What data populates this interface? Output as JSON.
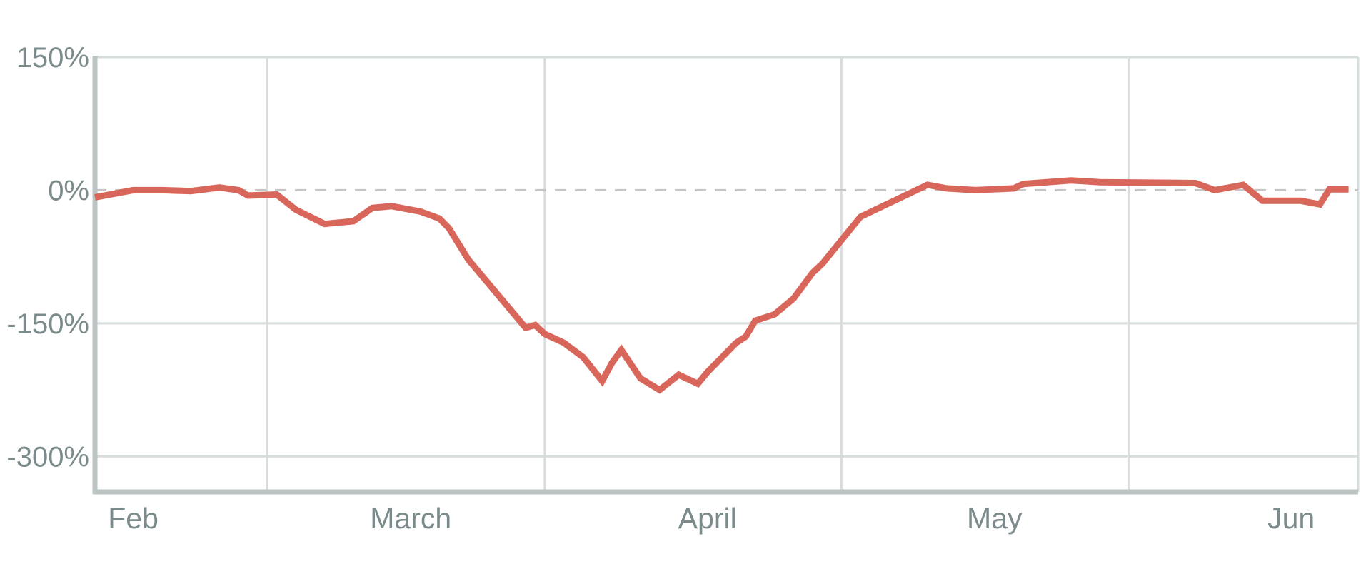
{
  "chart_data": {
    "type": "line",
    "title": "",
    "xlabel": "",
    "ylabel": "",
    "x_range": [
      "2020-01-28",
      "2020-06-08"
    ],
    "ylim": [
      -340,
      150
    ],
    "y_ticks": [
      150,
      0,
      -150,
      -300
    ],
    "y_tick_labels": [
      "150%",
      "0%",
      "-150%",
      "-300%"
    ],
    "x_ticks": [
      {
        "label": "Feb",
        "date": "2020-02-01"
      },
      {
        "label": "March",
        "date": "2020-03-01"
      },
      {
        "label": "April",
        "date": "2020-04-01"
      },
      {
        "label": "May",
        "date": "2020-05-01"
      },
      {
        "label": "Jun",
        "date": "2020-06-01"
      }
    ],
    "vertical_gridlines": [
      "2020-02-15",
      "2020-03-15",
      "2020-04-15",
      "2020-05-15"
    ],
    "baseline": 0,
    "grid": true,
    "colors": {
      "line": "#d9665b",
      "grid": "#d7dcdc",
      "axis": "#bcc3c3",
      "baseline": "#c5c5c5",
      "text": "#7b8a8b"
    },
    "series": [
      {
        "values": [
          {
            "x": "2020-01-28",
            "y": -8
          },
          {
            "x": "2020-01-30",
            "y": -4
          },
          {
            "x": "2020-02-01",
            "y": 0
          },
          {
            "x": "2020-02-04",
            "y": 0
          },
          {
            "x": "2020-02-07",
            "y": -1
          },
          {
            "x": "2020-02-10",
            "y": 3
          },
          {
            "x": "2020-02-12",
            "y": 0
          },
          {
            "x": "2020-02-13",
            "y": -6
          },
          {
            "x": "2020-02-16",
            "y": -5
          },
          {
            "x": "2020-02-18",
            "y": -22
          },
          {
            "x": "2020-02-21",
            "y": -38
          },
          {
            "x": "2020-02-24",
            "y": -35
          },
          {
            "x": "2020-02-26",
            "y": -20
          },
          {
            "x": "2020-02-28",
            "y": -18
          },
          {
            "x": "2020-03-02",
            "y": -24
          },
          {
            "x": "2020-03-04",
            "y": -32
          },
          {
            "x": "2020-03-05",
            "y": -43
          },
          {
            "x": "2020-03-07",
            "y": -78
          },
          {
            "x": "2020-03-13",
            "y": -155
          },
          {
            "x": "2020-03-14",
            "y": -152
          },
          {
            "x": "2020-03-15",
            "y": -162
          },
          {
            "x": "2020-03-17",
            "y": -172
          },
          {
            "x": "2020-03-19",
            "y": -188
          },
          {
            "x": "2020-03-21",
            "y": -215
          },
          {
            "x": "2020-03-22",
            "y": -195
          },
          {
            "x": "2020-03-23",
            "y": -180
          },
          {
            "x": "2020-03-25",
            "y": -212
          },
          {
            "x": "2020-03-27",
            "y": -225
          },
          {
            "x": "2020-03-29",
            "y": -208
          },
          {
            "x": "2020-03-31",
            "y": -218
          },
          {
            "x": "2020-04-01",
            "y": -205
          },
          {
            "x": "2020-04-04",
            "y": -172
          },
          {
            "x": "2020-04-05",
            "y": -165
          },
          {
            "x": "2020-04-06",
            "y": -147
          },
          {
            "x": "2020-04-08",
            "y": -140
          },
          {
            "x": "2020-04-10",
            "y": -122
          },
          {
            "x": "2020-04-12",
            "y": -93
          },
          {
            "x": "2020-04-13",
            "y": -83
          },
          {
            "x": "2020-04-17",
            "y": -30
          },
          {
            "x": "2020-04-24",
            "y": 6
          },
          {
            "x": "2020-04-26",
            "y": 2
          },
          {
            "x": "2020-04-29",
            "y": 0
          },
          {
            "x": "2020-05-03",
            "y": 2
          },
          {
            "x": "2020-05-04",
            "y": 7
          },
          {
            "x": "2020-05-09",
            "y": 11
          },
          {
            "x": "2020-05-12",
            "y": 9
          },
          {
            "x": "2020-05-22",
            "y": 8
          },
          {
            "x": "2020-05-24",
            "y": 0
          },
          {
            "x": "2020-05-27",
            "y": 6
          },
          {
            "x": "2020-05-29",
            "y": -12
          },
          {
            "x": "2020-06-02",
            "y": -12
          },
          {
            "x": "2020-06-04",
            "y": -16
          },
          {
            "x": "2020-06-05",
            "y": 1
          },
          {
            "x": "2020-06-07",
            "y": 1
          }
        ]
      }
    ]
  }
}
